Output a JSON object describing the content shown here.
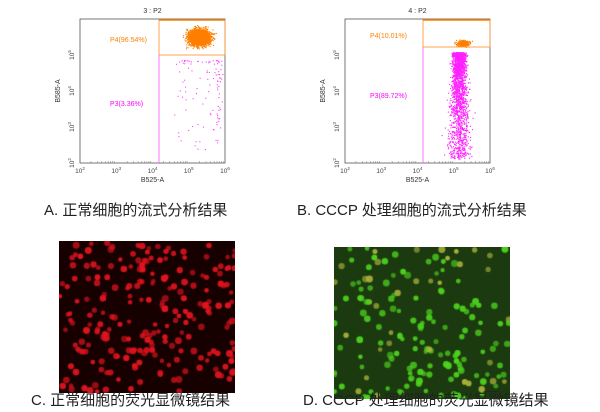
{
  "chart_data": [
    {
      "type": "scatter",
      "title": "3 : P2",
      "xlabel": "B525-A",
      "ylabel": "B585-A",
      "x_scale": "log",
      "y_scale": "log",
      "xlim": [
        100,
        1000000
      ],
      "ylim": [
        100,
        1000000
      ],
      "x_ticks": [
        "10",
        "10",
        "10",
        "10",
        "10"
      ],
      "x_tick_exp": [
        "2",
        "3",
        "4",
        "5",
        "6"
      ],
      "y_ticks": [
        "10",
        "10",
        "10",
        "10"
      ],
      "y_tick_exp": [
        "2",
        "3",
        "4",
        "5"
      ],
      "gates": [
        {
          "name": "P4",
          "label": "P4(96.54%)",
          "percent": 96.54,
          "color": "#ff8000"
        },
        {
          "name": "P3",
          "label": "P3(3.36%)",
          "percent": 3.36,
          "color": "#ff00ff"
        }
      ],
      "caption": "A. 正常细胞的流式分析结果"
    },
    {
      "type": "scatter",
      "title": "4 : P2",
      "xlabel": "B525-A",
      "ylabel": "B585-A",
      "x_scale": "log",
      "y_scale": "log",
      "xlim": [
        100,
        1000000
      ],
      "ylim": [
        100,
        1000000
      ],
      "x_ticks": [
        "10",
        "10",
        "10",
        "10",
        "10"
      ],
      "x_tick_exp": [
        "2",
        "3",
        "4",
        "5",
        "6"
      ],
      "y_ticks": [
        "10",
        "10",
        "10",
        "10"
      ],
      "y_tick_exp": [
        "2",
        "3",
        "4",
        "5"
      ],
      "gates": [
        {
          "name": "P4",
          "label": "P4(10.01%)",
          "percent": 10.01,
          "color": "#ff8000"
        },
        {
          "name": "P3",
          "label": "P3(89.72%)",
          "percent": 89.72,
          "color": "#ff00ff"
        }
      ],
      "caption": "B. CCCP 处理细胞的流式分析结果"
    }
  ],
  "images": [
    {
      "caption": "C. 正常细胞的荧光显微镜结果",
      "color": "#e0141e",
      "background": "#160000"
    },
    {
      "caption": "D. CCCP 处理细胞的荧光显微镜结果",
      "color": "#4cd21e",
      "background": "#1c3a10"
    }
  ]
}
